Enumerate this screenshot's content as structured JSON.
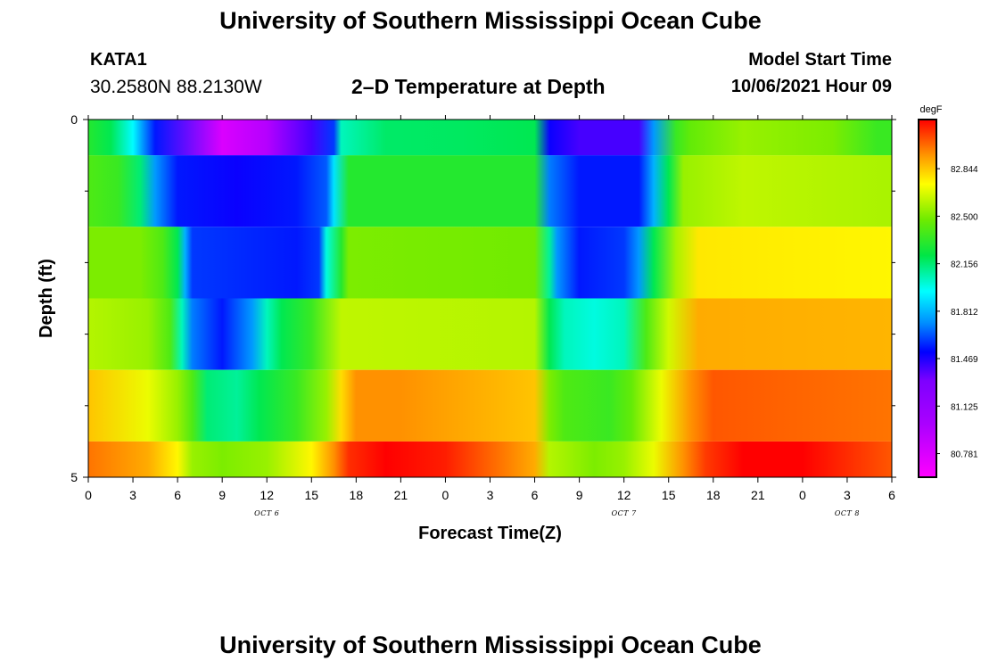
{
  "header": {
    "title": "University of Southern Mississippi Ocean Cube",
    "station_id": "KATA1",
    "coordinates": "30.2580N  88.2130W",
    "subtitle": "2–D Temperature at Depth",
    "model_start_label": "Model Start Time",
    "model_start_value": "10/06/2021 Hour 09"
  },
  "footer": {
    "title": "University of Southern Mississippi Ocean Cube"
  },
  "chart_data": {
    "type": "heatmap",
    "xlabel": "Forecast Time(Z)",
    "ylabel": "Depth (ft)",
    "x_hours": [
      0,
      3,
      6,
      9,
      12,
      15,
      18,
      21,
      24,
      27,
      30,
      33,
      36,
      39,
      42,
      45,
      48,
      51,
      54
    ],
    "x_tick_labels": [
      "0",
      "3",
      "6",
      "9",
      "12",
      "15",
      "18",
      "21",
      "0",
      "3",
      "6",
      "9",
      "12",
      "15",
      "18",
      "21",
      "0",
      "3",
      "6"
    ],
    "date_labels": [
      {
        "hour": 12,
        "label": "OCT 6"
      },
      {
        "hour": 36,
        "label": "OCT 7"
      },
      {
        "hour": 51,
        "label": "OCT 8"
      }
    ],
    "xlim": [
      0,
      54
    ],
    "ylim": [
      0,
      5
    ],
    "y_tick_labels": [
      {
        "depth": 0,
        "label": "0"
      },
      {
        "depth": 5,
        "label": "5"
      }
    ],
    "y_minor_ticks": [
      1,
      2,
      3,
      4
    ],
    "depth_levels": [
      0,
      1,
      2,
      3,
      4,
      5
    ],
    "colorbar": {
      "unit": "degF",
      "min": 80.61,
      "max": 83.2,
      "tick_values": [
        80.781,
        81.125,
        81.469,
        81.812,
        82.156,
        82.5,
        82.844
      ],
      "tick_labels": [
        "80.781",
        "81.125",
        "81.469",
        "81.812",
        "82.156",
        "82.500",
        "82.844"
      ]
    },
    "rows": [
      {
        "depth_range": [
          0.0,
          0.5
        ],
        "keyframes": [
          [
            0,
            82.3
          ],
          [
            1.5,
            82.2
          ],
          [
            3,
            81.95
          ],
          [
            4.5,
            81.55
          ],
          [
            9,
            80.78
          ],
          [
            12,
            80.95
          ],
          [
            15,
            81.4
          ],
          [
            16.5,
            81.6
          ],
          [
            17,
            82.05
          ],
          [
            20,
            82.17
          ],
          [
            25,
            82.18
          ],
          [
            30,
            82.2
          ],
          [
            31,
            81.5
          ],
          [
            33,
            81.4
          ],
          [
            37,
            81.4
          ],
          [
            38,
            81.75
          ],
          [
            39.5,
            82.35
          ],
          [
            40.5,
            82.45
          ],
          [
            44,
            82.55
          ],
          [
            50,
            82.5
          ],
          [
            53,
            82.35
          ],
          [
            54,
            82.35
          ]
        ]
      },
      {
        "depth_range": [
          0.5,
          1.5
        ],
        "keyframes": [
          [
            0,
            82.4
          ],
          [
            2,
            82.35
          ],
          [
            3.5,
            82.15
          ],
          [
            4.5,
            81.75
          ],
          [
            6,
            81.55
          ],
          [
            10,
            81.5
          ],
          [
            14,
            81.55
          ],
          [
            16,
            81.65
          ],
          [
            16.5,
            81.9
          ],
          [
            17.5,
            82.3
          ],
          [
            30,
            82.3
          ],
          [
            31,
            81.7
          ],
          [
            33,
            81.55
          ],
          [
            37,
            81.55
          ],
          [
            38,
            81.8
          ],
          [
            39,
            82.2
          ],
          [
            40,
            82.55
          ],
          [
            44,
            82.62
          ],
          [
            54,
            82.58
          ]
        ]
      },
      {
        "depth_range": [
          1.5,
          2.5
        ],
        "keyframes": [
          [
            0,
            82.5
          ],
          [
            3.5,
            82.5
          ],
          [
            5,
            82.4
          ],
          [
            6,
            82.2
          ],
          [
            6.5,
            81.8
          ],
          [
            7,
            81.6
          ],
          [
            14,
            81.55
          ],
          [
            15.5,
            81.6
          ],
          [
            16,
            82.0
          ],
          [
            17,
            82.3
          ],
          [
            17.5,
            82.5
          ],
          [
            30,
            82.48
          ],
          [
            31,
            82.1
          ],
          [
            31.5,
            81.75
          ],
          [
            33,
            81.55
          ],
          [
            36,
            81.6
          ],
          [
            37,
            81.75
          ],
          [
            38,
            82.2
          ],
          [
            39.5,
            82.58
          ],
          [
            41,
            82.78
          ],
          [
            54,
            82.75
          ]
        ]
      },
      {
        "depth_range": [
          2.5,
          3.5
        ],
        "keyframes": [
          [
            0,
            82.6
          ],
          [
            4,
            82.55
          ],
          [
            5.5,
            82.4
          ],
          [
            6.3,
            82.05
          ],
          [
            7,
            81.7
          ],
          [
            9,
            81.55
          ],
          [
            11,
            81.75
          ],
          [
            12,
            82.05
          ],
          [
            13,
            82.2
          ],
          [
            15,
            82.35
          ],
          [
            17,
            82.62
          ],
          [
            30,
            82.6
          ],
          [
            31,
            82.2
          ],
          [
            32,
            82.05
          ],
          [
            34,
            82.0
          ],
          [
            36,
            82.05
          ],
          [
            37.5,
            82.4
          ],
          [
            39,
            82.65
          ],
          [
            41,
            82.9
          ],
          [
            54,
            82.88
          ]
        ]
      },
      {
        "depth_range": [
          3.5,
          4.5
        ],
        "keyframes": [
          [
            0,
            82.85
          ],
          [
            4,
            82.7
          ],
          [
            6,
            82.55
          ],
          [
            7,
            82.4
          ],
          [
            8,
            82.15
          ],
          [
            10,
            82.1
          ],
          [
            11.5,
            82.2
          ],
          [
            14,
            82.35
          ],
          [
            16,
            82.55
          ],
          [
            17,
            82.8
          ],
          [
            18,
            82.95
          ],
          [
            21,
            82.95
          ],
          [
            30,
            82.85
          ],
          [
            31,
            82.5
          ],
          [
            32,
            82.4
          ],
          [
            35,
            82.35
          ],
          [
            36.5,
            82.45
          ],
          [
            38.5,
            82.7
          ],
          [
            40.5,
            82.95
          ],
          [
            42,
            83.05
          ],
          [
            54,
            83.0
          ]
        ]
      },
      {
        "depth_range": [
          4.5,
          5.0
        ],
        "keyframes": [
          [
            0,
            83.0
          ],
          [
            4,
            82.9
          ],
          [
            6,
            82.75
          ],
          [
            7,
            82.55
          ],
          [
            9,
            82.5
          ],
          [
            12,
            82.55
          ],
          [
            15,
            82.75
          ],
          [
            16.5,
            82.95
          ],
          [
            17.5,
            83.12
          ],
          [
            20,
            83.2
          ],
          [
            24,
            83.15
          ],
          [
            30,
            82.9
          ],
          [
            31,
            82.6
          ],
          [
            34,
            82.5
          ],
          [
            36,
            82.55
          ],
          [
            38,
            82.7
          ],
          [
            40,
            82.95
          ],
          [
            41.5,
            83.1
          ],
          [
            44,
            83.22
          ],
          [
            48,
            83.2
          ],
          [
            52,
            83.1
          ],
          [
            54,
            83.05
          ]
        ]
      }
    ]
  }
}
